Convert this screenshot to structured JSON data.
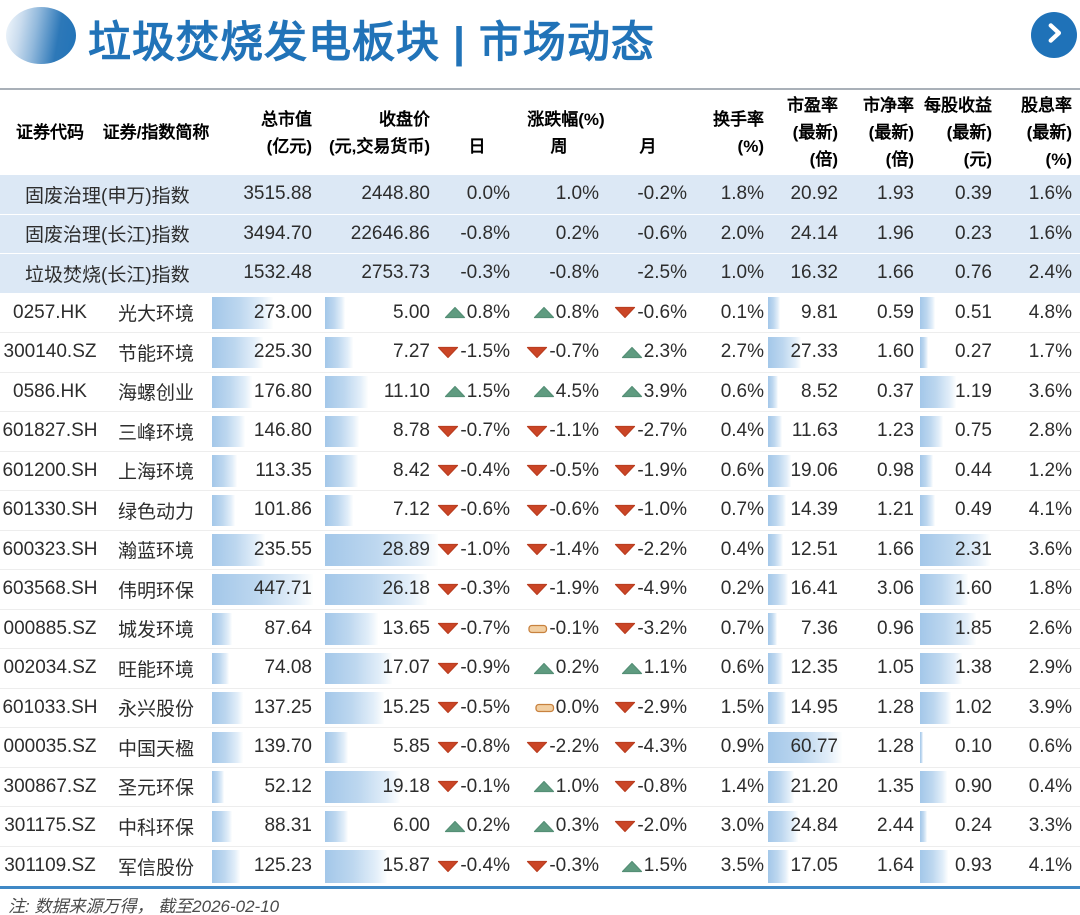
{
  "header": {
    "title": "垃圾焚烧发电板块 | 市场动态"
  },
  "footer": {
    "note": "注: 数据来源万得， 截至2026-02-10"
  },
  "colors": {
    "accent_blue": "#2173b8",
    "index_row_bg": "#dce8f5",
    "databar_blue": "#a3c7e9",
    "up_green": "#5f9b80",
    "down_red": "#cb4526",
    "flat_tan": "#f2cfa2"
  },
  "chart_data": {
    "type": "table",
    "title": "垃圾焚烧发电板块 | 市场动态",
    "column_headers": {
      "code": "证券代码",
      "name": "证券/指数简称",
      "mktcap_1": "总市值",
      "mktcap_2": "(亿元)",
      "close_1": "收盘价",
      "close_2": "(元,交易货币)",
      "chg_group": "涨跌幅(%)",
      "day": "日",
      "week": "周",
      "month": "月",
      "turnover_1": "换手率",
      "turnover_2": "(%)",
      "pe_1": "市盈率",
      "pe_2": "(最新)",
      "pe_3": "(倍)",
      "pb_1": "市净率",
      "pb_2": "(最新)",
      "pb_3": "(倍)",
      "eps_1": "每股收益",
      "eps_2": "(最新)",
      "eps_3": "(元)",
      "div_1": "股息率",
      "div_2": "(最新)",
      "div_3": "(%)"
    },
    "index_rows": [
      {
        "name": "固废治理(申万)指数",
        "mktcap": "3515.88",
        "close": "2448.80",
        "day": "0.0%",
        "week": "1.0%",
        "month": "-0.2%",
        "turnover": "1.8%",
        "pe": "20.92",
        "pb": "1.93",
        "eps": "0.39",
        "dividend": "1.6%"
      },
      {
        "name": "固废治理(长江)指数",
        "mktcap": "3494.70",
        "close": "22646.86",
        "day": "-0.8%",
        "week": "0.2%",
        "month": "-0.6%",
        "turnover": "2.0%",
        "pe": "24.14",
        "pb": "1.96",
        "eps": "0.23",
        "dividend": "1.6%"
      },
      {
        "name": "垃圾焚烧(长江)指数",
        "mktcap": "1532.48",
        "close": "2753.73",
        "day": "-0.3%",
        "week": "-0.8%",
        "month": "-2.5%",
        "turnover": "1.0%",
        "pe": "16.32",
        "pb": "1.66",
        "eps": "0.76",
        "dividend": "2.4%"
      }
    ],
    "stock_rows": [
      {
        "code": "0257.HK",
        "name": "光大环境",
        "mktcap": "273.00",
        "close": "5.00",
        "day": {
          "dir": "up",
          "val": "0.8%"
        },
        "week": {
          "dir": "up",
          "val": "0.8%"
        },
        "month": {
          "dir": "down",
          "val": "-0.6%"
        },
        "turnover": "0.1%",
        "pe": "9.81",
        "pb": "0.59",
        "eps": "0.51",
        "dividend": "4.8%"
      },
      {
        "code": "300140.SZ",
        "name": "节能环境",
        "mktcap": "225.30",
        "close": "7.27",
        "day": {
          "dir": "down",
          "val": "-1.5%"
        },
        "week": {
          "dir": "down",
          "val": "-0.7%"
        },
        "month": {
          "dir": "up",
          "val": "2.3%"
        },
        "turnover": "2.7%",
        "pe": "27.33",
        "pb": "1.60",
        "eps": "0.27",
        "dividend": "1.7%"
      },
      {
        "code": "0586.HK",
        "name": "海螺创业",
        "mktcap": "176.80",
        "close": "11.10",
        "day": {
          "dir": "up",
          "val": "1.5%"
        },
        "week": {
          "dir": "up",
          "val": "4.5%"
        },
        "month": {
          "dir": "up",
          "val": "3.9%"
        },
        "turnover": "0.6%",
        "pe": "8.52",
        "pb": "0.37",
        "eps": "1.19",
        "dividend": "3.6%"
      },
      {
        "code": "601827.SH",
        "name": "三峰环境",
        "mktcap": "146.80",
        "close": "8.78",
        "day": {
          "dir": "down",
          "val": "-0.7%"
        },
        "week": {
          "dir": "down",
          "val": "-1.1%"
        },
        "month": {
          "dir": "down",
          "val": "-2.7%"
        },
        "turnover": "0.4%",
        "pe": "11.63",
        "pb": "1.23",
        "eps": "0.75",
        "dividend": "2.8%"
      },
      {
        "code": "601200.SH",
        "name": "上海环境",
        "mktcap": "113.35",
        "close": "8.42",
        "day": {
          "dir": "down",
          "val": "-0.4%"
        },
        "week": {
          "dir": "down",
          "val": "-0.5%"
        },
        "month": {
          "dir": "down",
          "val": "-1.9%"
        },
        "turnover": "0.6%",
        "pe": "19.06",
        "pb": "0.98",
        "eps": "0.44",
        "dividend": "1.2%"
      },
      {
        "code": "601330.SH",
        "name": "绿色动力",
        "mktcap": "101.86",
        "close": "7.12",
        "day": {
          "dir": "down",
          "val": "-0.6%"
        },
        "week": {
          "dir": "down",
          "val": "-0.6%"
        },
        "month": {
          "dir": "down",
          "val": "-1.0%"
        },
        "turnover": "0.7%",
        "pe": "14.39",
        "pb": "1.21",
        "eps": "0.49",
        "dividend": "4.1%"
      },
      {
        "code": "600323.SH",
        "name": "瀚蓝环境",
        "mktcap": "235.55",
        "close": "28.89",
        "day": {
          "dir": "down",
          "val": "-1.0%"
        },
        "week": {
          "dir": "down",
          "val": "-1.4%"
        },
        "month": {
          "dir": "down",
          "val": "-2.2%"
        },
        "turnover": "0.4%",
        "pe": "12.51",
        "pb": "1.66",
        "eps": "2.31",
        "dividend": "3.6%"
      },
      {
        "code": "603568.SH",
        "name": "伟明环保",
        "mktcap": "447.71",
        "close": "26.18",
        "day": {
          "dir": "down",
          "val": "-0.3%"
        },
        "week": {
          "dir": "down",
          "val": "-1.9%"
        },
        "month": {
          "dir": "down",
          "val": "-4.9%"
        },
        "turnover": "0.2%",
        "pe": "16.41",
        "pb": "3.06",
        "eps": "1.60",
        "dividend": "1.8%"
      },
      {
        "code": "000885.SZ",
        "name": "城发环境",
        "mktcap": "87.64",
        "close": "13.65",
        "day": {
          "dir": "down",
          "val": "-0.7%"
        },
        "week": {
          "dir": "flat",
          "val": "-0.1%"
        },
        "month": {
          "dir": "down",
          "val": "-3.2%"
        },
        "turnover": "0.7%",
        "pe": "7.36",
        "pb": "0.96",
        "eps": "1.85",
        "dividend": "2.6%"
      },
      {
        "code": "002034.SZ",
        "name": "旺能环境",
        "mktcap": "74.08",
        "close": "17.07",
        "day": {
          "dir": "down",
          "val": "-0.9%"
        },
        "week": {
          "dir": "up",
          "val": "0.2%"
        },
        "month": {
          "dir": "up",
          "val": "1.1%"
        },
        "turnover": "0.6%",
        "pe": "12.35",
        "pb": "1.05",
        "eps": "1.38",
        "dividend": "2.9%"
      },
      {
        "code": "601033.SH",
        "name": "永兴股份",
        "mktcap": "137.25",
        "close": "15.25",
        "day": {
          "dir": "down",
          "val": "-0.5%"
        },
        "week": {
          "dir": "flat",
          "val": "0.0%"
        },
        "month": {
          "dir": "down",
          "val": "-2.9%"
        },
        "turnover": "1.5%",
        "pe": "14.95",
        "pb": "1.28",
        "eps": "1.02",
        "dividend": "3.9%"
      },
      {
        "code": "000035.SZ",
        "name": "中国天楹",
        "mktcap": "139.70",
        "close": "5.85",
        "day": {
          "dir": "down",
          "val": "-0.8%"
        },
        "week": {
          "dir": "down",
          "val": "-2.2%"
        },
        "month": {
          "dir": "down",
          "val": "-4.3%"
        },
        "turnover": "0.9%",
        "pe": "60.77",
        "pb": "1.28",
        "eps": "0.10",
        "dividend": "0.6%"
      },
      {
        "code": "300867.SZ",
        "name": "圣元环保",
        "mktcap": "52.12",
        "close": "19.18",
        "day": {
          "dir": "down",
          "val": "-0.1%"
        },
        "week": {
          "dir": "up",
          "val": "1.0%"
        },
        "month": {
          "dir": "down",
          "val": "-0.8%"
        },
        "turnover": "1.4%",
        "pe": "21.20",
        "pb": "1.35",
        "eps": "0.90",
        "dividend": "0.4%"
      },
      {
        "code": "301175.SZ",
        "name": "中科环保",
        "mktcap": "88.31",
        "close": "6.00",
        "day": {
          "dir": "up",
          "val": "0.2%"
        },
        "week": {
          "dir": "up",
          "val": "0.3%"
        },
        "month": {
          "dir": "down",
          "val": "-2.0%"
        },
        "turnover": "3.0%",
        "pe": "24.84",
        "pb": "2.44",
        "eps": "0.24",
        "dividend": "3.3%"
      },
      {
        "code": "301109.SZ",
        "name": "军信股份",
        "mktcap": "125.23",
        "close": "15.87",
        "day": {
          "dir": "down",
          "val": "-0.4%"
        },
        "week": {
          "dir": "down",
          "val": "-0.3%"
        },
        "month": {
          "dir": "up",
          "val": "1.5%"
        },
        "turnover": "3.5%",
        "pe": "17.05",
        "pb": "1.64",
        "eps": "0.93",
        "dividend": "4.1%"
      }
    ]
  }
}
